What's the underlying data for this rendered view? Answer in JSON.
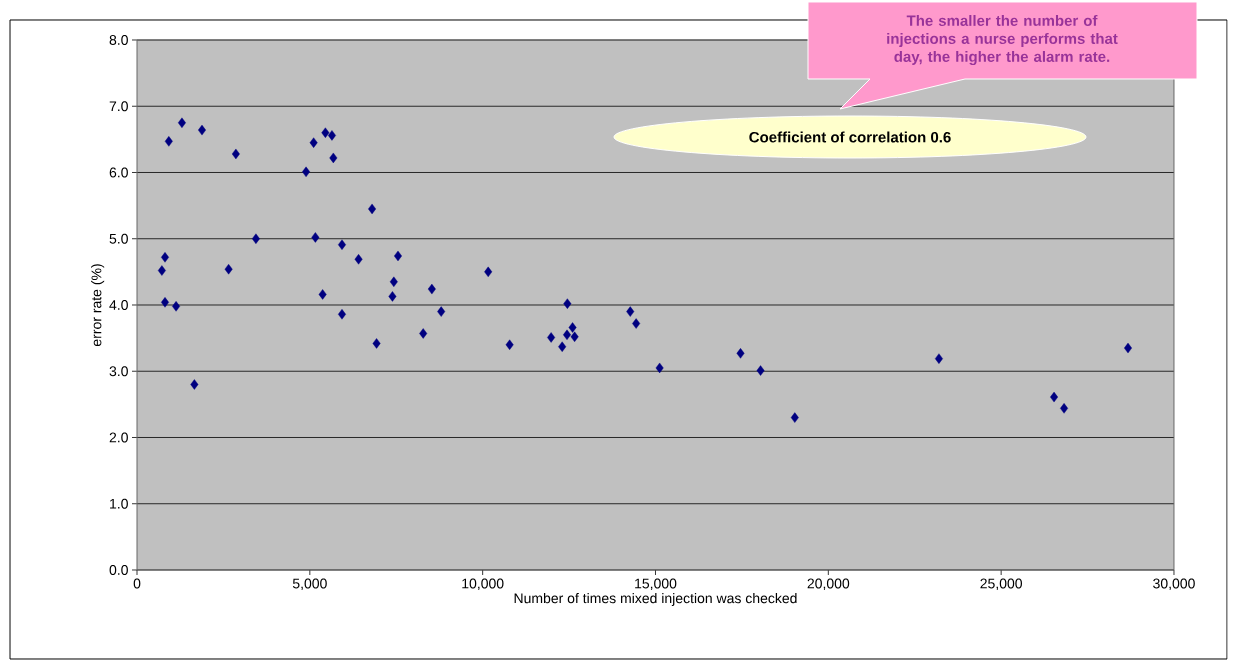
{
  "chart_data": {
    "type": "scatter",
    "xlabel": "Number of times mixed injection was checked",
    "ylabel": "error rate (%)",
    "annotations": [
      "The smaller the number of injections a nurse performs that day, the higher the alarm rate.",
      "Coefficient of correlation 0.6"
    ],
    "x": [
      920,
      1300,
      1880,
      2860,
      4890,
      5110,
      5450,
      5640,
      5680,
      6800,
      810,
      720,
      810,
      1130,
      1660,
      2650,
      3440,
      5160,
      5930,
      6410,
      7550,
      7430,
      7390,
      5370,
      5930,
      6930,
      8280,
      8530,
      8800,
      10160,
      10780,
      12450,
      11980,
      12300,
      12600,
      12440,
      12660,
      14270,
      14440,
      15120,
      17460,
      18040,
      19030,
      23200,
      26530,
      26820,
      28670
    ],
    "values": [
      6.47,
      6.75,
      6.64,
      6.28,
      6.01,
      6.45,
      6.6,
      6.56,
      6.22,
      5.45,
      4.72,
      4.52,
      4.04,
      3.98,
      2.8,
      4.54,
      5.0,
      5.02,
      4.91,
      4.69,
      4.74,
      4.35,
      4.13,
      4.16,
      3.86,
      3.42,
      3.57,
      4.24,
      3.9,
      4.5,
      3.4,
      4.02,
      3.51,
      3.37,
      3.66,
      3.55,
      3.52,
      3.9,
      3.72,
      3.05,
      3.27,
      3.01,
      2.3,
      3.19,
      2.61,
      2.44,
      3.35
    ],
    "color": "#000080",
    "marker": "diamond",
    "grid": "y",
    "xlim": [
      0,
      30000
    ],
    "ylim": [
      0,
      8
    ],
    "xticks": [
      0,
      {
        "value": 5000,
        "label": "5,000"
      },
      {
        "value": 10000,
        "label": "10,000"
      },
      {
        "value": 15000,
        "label": "15,000"
      },
      {
        "value": 20000,
        "label": "20,000"
      },
      {
        "value": 25000,
        "label": "25,000"
      },
      {
        "value": 30000,
        "label": "30,000"
      }
    ],
    "yticks": [
      {
        "value": 0,
        "label": "0.0"
      },
      {
        "value": 1,
        "label": "1.0"
      },
      {
        "value": 2,
        "label": "2.0"
      },
      {
        "value": 3,
        "label": "3.0"
      },
      {
        "value": 4,
        "label": "4.0"
      },
      {
        "value": 5,
        "label": "5.0"
      },
      {
        "value": 6,
        "label": "6.0"
      },
      {
        "value": 7,
        "label": "7.0"
      },
      {
        "value": 8,
        "label": "8.0"
      }
    ]
  }
}
